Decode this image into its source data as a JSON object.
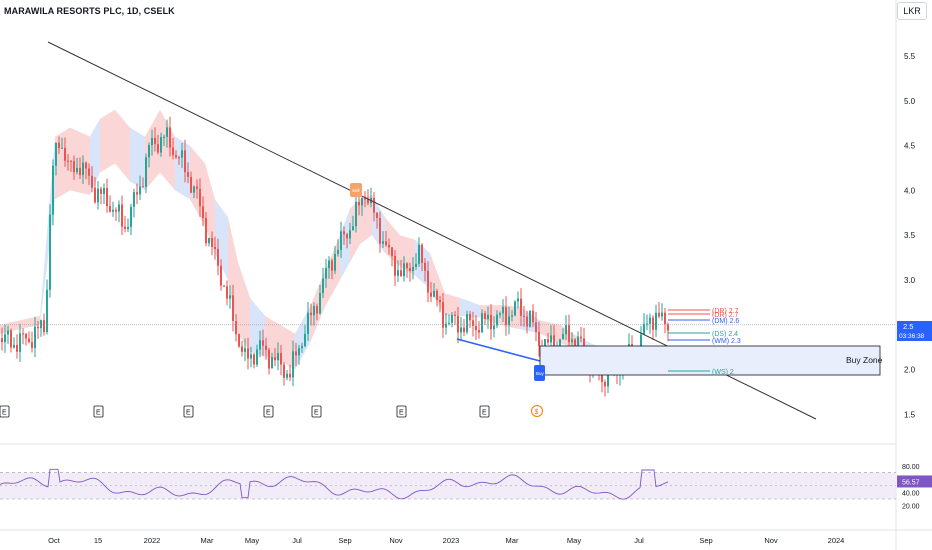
{
  "header": {
    "title": "MARAWILA RESORTS PLC, 1D, CSELK",
    "currency": "LKR"
  },
  "colors": {
    "up": "#26a69a",
    "down": "#ef5350",
    "cloud_red": "#f9c4c4",
    "cloud_blue": "#c8d9f7",
    "trend": "#333333",
    "rsi": "#7e57c2",
    "zone_fill": "#e8eefb",
    "blue_line": "#2962ff"
  },
  "chart_data": {
    "type": "candlestick",
    "price_axis": {
      "ticks": [
        "5.5",
        "5.0",
        "4.5",
        "4.0",
        "3.5",
        "3.0",
        "2.5",
        "2.0",
        "1.5"
      ]
    },
    "last_price": {
      "value": "2.5",
      "countdown": "03:36:38"
    },
    "time_axis": {
      "ticks": [
        "Oct",
        "15",
        "2022",
        "Mar",
        "May",
        "Jul",
        "Sep",
        "Nov",
        "2023",
        "Mar",
        "May",
        "Jul",
        "Sep",
        "Nov",
        "2024"
      ]
    },
    "levels": [
      {
        "label": "(DR)",
        "value": "2.7",
        "color": "#ef5350"
      },
      {
        "label": "(DR)",
        "value": "2.7",
        "color": "#ef5350"
      },
      {
        "label": "(DM)",
        "value": "2.6",
        "color": "#2962ff"
      },
      {
        "label": "(DS)",
        "value": "2.4",
        "color": "#26a69a"
      },
      {
        "label": "(WM)",
        "value": "2.3",
        "color": "#2962ff"
      },
      {
        "label": "(WS)",
        "value": "2",
        "color": "#26a69a"
      }
    ],
    "zone_label": "Buy Zone",
    "markers": {
      "earnings": "E",
      "dividend": "$",
      "sell": "Sell",
      "buy": "Buy"
    },
    "rsi": {
      "ticks": [
        "80.00",
        "40.00",
        "20.00"
      ],
      "value": "56.57",
      "upper": 70,
      "lower": 30
    }
  }
}
